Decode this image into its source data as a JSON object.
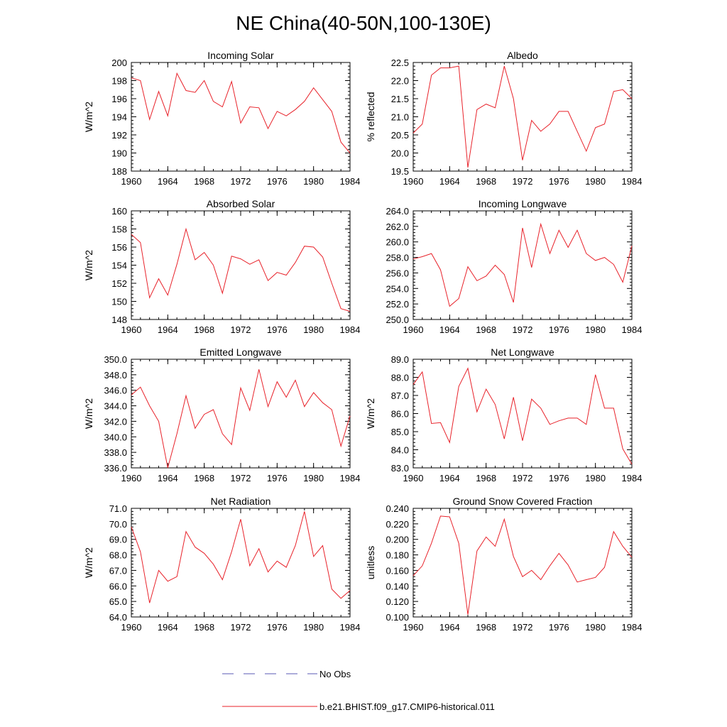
{
  "figure": {
    "title": "NE China(40-50N,100-130E)"
  },
  "legend": {
    "obs_label": "No Obs",
    "obs_color": "#5a5ab4",
    "model_label": "b.e21.BHIST.f09_g17.CMIP6-historical.011",
    "model_color": "#e8222a"
  },
  "chart_data": [
    {
      "type": "line",
      "title": "Incoming Solar",
      "ylabel": "W/m^2",
      "xlim": [
        1960,
        1984
      ],
      "ylim": [
        188,
        200
      ],
      "x_ticks": [
        "1960",
        "1964",
        "1968",
        "1972",
        "1976",
        "1980",
        "1984"
      ],
      "y_ticks": [
        "188",
        "190",
        "192",
        "194",
        "196",
        "198",
        "200"
      ],
      "x": [
        1960,
        1961,
        1962,
        1963,
        1964,
        1965,
        1966,
        1967,
        1968,
        1969,
        1970,
        1971,
        1972,
        1973,
        1974,
        1975,
        1976,
        1977,
        1978,
        1979,
        1980,
        1981,
        1982,
        1983,
        1984
      ],
      "values": [
        198.3,
        198.0,
        193.7,
        196.8,
        194.1,
        198.8,
        196.9,
        196.7,
        198.0,
        195.7,
        195.1,
        197.9,
        193.3,
        195.1,
        195.0,
        192.7,
        194.6,
        194.1,
        194.8,
        195.7,
        197.2,
        195.9,
        194.6,
        191.2,
        190.0
      ]
    },
    {
      "type": "line",
      "title": "Albedo",
      "ylabel": "% reflected",
      "xlim": [
        1960,
        1984
      ],
      "ylim": [
        19.5,
        22.5
      ],
      "x_ticks": [
        "1960",
        "1964",
        "1968",
        "1972",
        "1976",
        "1980",
        "1984"
      ],
      "y_ticks": [
        "19.5",
        "20.0",
        "20.5",
        "21.0",
        "21.5",
        "22.0",
        "22.5"
      ],
      "x": [
        1960,
        1961,
        1962,
        1963,
        1964,
        1965,
        1966,
        1967,
        1968,
        1969,
        1970,
        1971,
        1972,
        1973,
        1974,
        1975,
        1976,
        1977,
        1978,
        1979,
        1980,
        1981,
        1982,
        1983,
        1984
      ],
      "values": [
        20.55,
        20.8,
        22.15,
        22.35,
        22.35,
        22.4,
        19.6,
        21.2,
        21.35,
        21.25,
        22.4,
        21.5,
        19.8,
        20.9,
        20.6,
        20.8,
        21.15,
        21.15,
        20.6,
        20.05,
        20.7,
        20.8,
        21.7,
        21.75,
        21.5
      ]
    },
    {
      "type": "line",
      "title": "Absorbed Solar",
      "ylabel": "W/m^2",
      "xlim": [
        1960,
        1984
      ],
      "ylim": [
        148,
        160
      ],
      "x_ticks": [
        "1960",
        "1964",
        "1968",
        "1972",
        "1976",
        "1980",
        "1984"
      ],
      "y_ticks": [
        "148",
        "150",
        "152",
        "154",
        "156",
        "158",
        "160"
      ],
      "x": [
        1960,
        1961,
        1962,
        1963,
        1964,
        1965,
        1966,
        1967,
        1968,
        1969,
        1970,
        1971,
        1972,
        1973,
        1974,
        1975,
        1976,
        1977,
        1978,
        1979,
        1980,
        1981,
        1982,
        1983,
        1984
      ],
      "values": [
        157.4,
        156.5,
        150.4,
        152.5,
        150.7,
        154.1,
        158.0,
        154.6,
        155.4,
        154.0,
        150.9,
        155.0,
        154.7,
        154.1,
        154.6,
        152.3,
        153.2,
        152.9,
        154.3,
        156.1,
        156.0,
        154.9,
        152.0,
        149.2,
        148.9
      ]
    },
    {
      "type": "line",
      "title": "Incoming Longwave",
      "ylabel": "",
      "xlim": [
        1960,
        1984
      ],
      "ylim": [
        250,
        264
      ],
      "x_ticks": [
        "1960",
        "1964",
        "1968",
        "1972",
        "1976",
        "1980",
        "1984"
      ],
      "y_ticks": [
        "250.0",
        "252.0",
        "254.0",
        "256.0",
        "258.0",
        "260.0",
        "262.0",
        "264.0"
      ],
      "x": [
        1960,
        1961,
        1962,
        1963,
        1964,
        1965,
        1966,
        1967,
        1968,
        1969,
        1970,
        1971,
        1972,
        1973,
        1974,
        1975,
        1976,
        1977,
        1978,
        1979,
        1980,
        1981,
        1982,
        1983,
        1984
      ],
      "values": [
        257.8,
        258.1,
        258.5,
        256.4,
        251.7,
        252.7,
        256.8,
        255.0,
        255.6,
        257.0,
        255.8,
        252.2,
        261.8,
        256.7,
        262.3,
        258.5,
        261.5,
        259.3,
        261.5,
        258.5,
        257.6,
        258.0,
        257.1,
        254.8,
        259.5
      ]
    },
    {
      "type": "line",
      "title": "Emitted Longwave",
      "ylabel": "W/m^2",
      "xlim": [
        1960,
        1984
      ],
      "ylim": [
        336,
        350
      ],
      "x_ticks": [
        "1960",
        "1964",
        "1968",
        "1972",
        "1976",
        "1980",
        "1984"
      ],
      "y_ticks": [
        "336.0",
        "338.0",
        "340.0",
        "342.0",
        "344.0",
        "346.0",
        "348.0",
        "350.0"
      ],
      "x": [
        1960,
        1961,
        1962,
        1963,
        1964,
        1965,
        1966,
        1967,
        1968,
        1969,
        1970,
        1971,
        1972,
        1973,
        1974,
        1975,
        1976,
        1977,
        1978,
        1979,
        1980,
        1981,
        1982,
        1983,
        1984
      ],
      "values": [
        345.4,
        346.4,
        344.0,
        342.0,
        336.0,
        340.4,
        345.3,
        341.1,
        342.9,
        343.5,
        340.4,
        339.0,
        346.3,
        343.4,
        348.7,
        343.9,
        347.1,
        345.1,
        347.3,
        343.9,
        345.7,
        344.4,
        343.5,
        338.8,
        342.7
      ]
    },
    {
      "type": "line",
      "title": "Net Longwave",
      "ylabel": "W/m^2",
      "xlim": [
        1960,
        1984
      ],
      "ylim": [
        83,
        89
      ],
      "x_ticks": [
        "1960",
        "1964",
        "1968",
        "1972",
        "1976",
        "1980",
        "1984"
      ],
      "y_ticks": [
        "83.0",
        "84.0",
        "85.0",
        "86.0",
        "87.0",
        "88.0",
        "89.0"
      ],
      "x": [
        1960,
        1961,
        1962,
        1963,
        1964,
        1965,
        1966,
        1967,
        1968,
        1969,
        1970,
        1971,
        1972,
        1973,
        1974,
        1975,
        1976,
        1977,
        1978,
        1979,
        1980,
        1981,
        1982,
        1983,
        1984
      ],
      "values": [
        87.6,
        88.3,
        85.45,
        85.5,
        84.4,
        87.5,
        88.5,
        86.1,
        87.35,
        86.5,
        84.6,
        86.9,
        84.5,
        86.8,
        86.3,
        85.4,
        85.6,
        85.75,
        85.75,
        85.4,
        88.15,
        86.3,
        86.3,
        84.05,
        83.2
      ]
    },
    {
      "type": "line",
      "title": "Net Radiation",
      "ylabel": "W/m^2",
      "xlim": [
        1960,
        1984
      ],
      "ylim": [
        64,
        71
      ],
      "x_ticks": [
        "1960",
        "1964",
        "1968",
        "1972",
        "1976",
        "1980",
        "1984"
      ],
      "y_ticks": [
        "64.0",
        "65.0",
        "66.0",
        "67.0",
        "68.0",
        "69.0",
        "70.0",
        "71.0"
      ],
      "x": [
        1960,
        1961,
        1962,
        1963,
        1964,
        1965,
        1966,
        1967,
        1968,
        1969,
        1970,
        1971,
        1972,
        1973,
        1974,
        1975,
        1976,
        1977,
        1978,
        1979,
        1980,
        1981,
        1982,
        1983,
        1984
      ],
      "values": [
        69.8,
        68.2,
        64.9,
        67.0,
        66.3,
        66.6,
        69.5,
        68.5,
        68.1,
        67.4,
        66.4,
        68.2,
        70.3,
        67.3,
        68.4,
        66.9,
        67.6,
        67.2,
        68.6,
        70.8,
        67.9,
        68.6,
        65.8,
        65.2,
        65.7
      ]
    },
    {
      "type": "line",
      "title": "Ground Snow Covered Fraction",
      "ylabel": "unitless",
      "xlim": [
        1960,
        1984
      ],
      "ylim": [
        0.1,
        0.24
      ],
      "x_ticks": [
        "1960",
        "1964",
        "1968",
        "1972",
        "1976",
        "1980",
        "1984"
      ],
      "y_ticks": [
        "0.100",
        "0.120",
        "0.140",
        "0.160",
        "0.180",
        "0.200",
        "0.220",
        "0.240"
      ],
      "x": [
        1960,
        1961,
        1962,
        1963,
        1964,
        1965,
        1966,
        1967,
        1968,
        1969,
        1970,
        1971,
        1972,
        1973,
        1974,
        1975,
        1976,
        1977,
        1978,
        1979,
        1980,
        1981,
        1982,
        1983,
        1984
      ],
      "values": [
        0.153,
        0.166,
        0.195,
        0.23,
        0.229,
        0.195,
        0.103,
        0.185,
        0.203,
        0.191,
        0.226,
        0.178,
        0.152,
        0.16,
        0.148,
        0.166,
        0.182,
        0.167,
        0.145,
        0.148,
        0.151,
        0.164,
        0.21,
        0.191,
        0.177
      ]
    }
  ]
}
